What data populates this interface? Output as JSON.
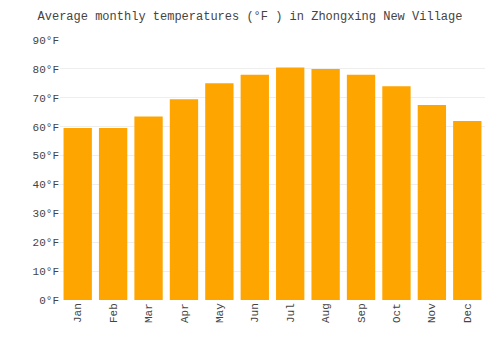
{
  "chart_data": {
    "type": "bar",
    "title": "Average monthly temperatures (°F ) in Zhongxing New Village",
    "categories": [
      "Jan",
      "Feb",
      "Mar",
      "Apr",
      "May",
      "Jun",
      "Jul",
      "Aug",
      "Sep",
      "Oct",
      "Nov",
      "Dec"
    ],
    "values": [
      59.5,
      59.5,
      63.5,
      69.5,
      75.0,
      78.0,
      80.5,
      80.0,
      78.0,
      74.0,
      67.5,
      62.0
    ],
    "color": "#FFA500",
    "ylim": [
      0,
      90
    ],
    "yticks": [
      {
        "value": 0,
        "label": "0°F"
      },
      {
        "value": 10,
        "label": "10°F"
      },
      {
        "value": 20,
        "label": "20°F"
      },
      {
        "value": 30,
        "label": "30°F"
      },
      {
        "value": 40,
        "label": "40°F"
      },
      {
        "value": 50,
        "label": "50°F"
      },
      {
        "value": 60,
        "label": "60°F"
      },
      {
        "value": 70,
        "label": "70°F"
      },
      {
        "value": 80,
        "label": "80°F"
      },
      {
        "value": 90,
        "label": "90°F"
      }
    ],
    "grid": true
  }
}
